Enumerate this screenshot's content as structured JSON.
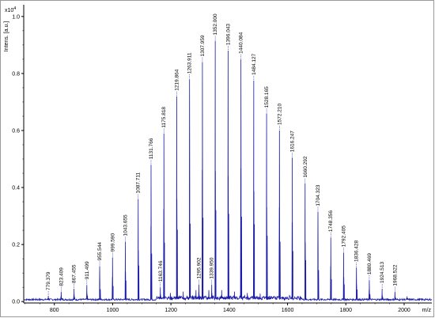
{
  "chart_data": {
    "type": "line",
    "title": "",
    "ylabel": "Intens. [a.u.]",
    "y_multiplier_label": "x10",
    "y_multiplier_exponent": "4",
    "xlabel": "m/z",
    "xlim": [
      695,
      2095
    ],
    "ylim": [
      -0.005,
      1.03
    ],
    "x_ticks": [
      800,
      1000,
      1200,
      1400,
      1600,
      1800,
      2000
    ],
    "y_ticks": [
      0.0,
      0.2,
      0.4,
      0.6,
      0.8,
      1.0
    ],
    "y_tick_labels": [
      "0.0",
      "0.2",
      "0.4",
      "0.6",
      "0.8",
      "1.0"
    ],
    "grid": false,
    "series_color": "#1a1aa8",
    "peaks": [
      {
        "x": 779.379,
        "y": 0.02,
        "label": "779.379"
      },
      {
        "x": 823.409,
        "y": 0.035,
        "label": "823.409"
      },
      {
        "x": 867.455,
        "y": 0.045,
        "label": "867.455"
      },
      {
        "x": 911.499,
        "y": 0.058,
        "label": "911.499"
      },
      {
        "x": 955.544,
        "y": 0.124,
        "label": "955.544"
      },
      {
        "x": 999.59,
        "y": 0.155,
        "label": "999.590"
      },
      {
        "x": 1043.655,
        "y": 0.21,
        "label": "1043.655"
      },
      {
        "x": 1087.711,
        "y": 0.36,
        "label": "1087.711"
      },
      {
        "x": 1131.766,
        "y": 0.48,
        "label": "1131.766"
      },
      {
        "x": 1163.746,
        "y": 0.05,
        "label": "1163.746"
      },
      {
        "x": 1175.818,
        "y": 0.59,
        "label": "1175.818"
      },
      {
        "x": 1219.864,
        "y": 0.72,
        "label": "1219.864"
      },
      {
        "x": 1263.911,
        "y": 0.78,
        "label": "1263.911"
      },
      {
        "x": 1295.902,
        "y": 0.06,
        "label": "1295.902"
      },
      {
        "x": 1307.959,
        "y": 0.84,
        "label": "1307.959"
      },
      {
        "x": 1339.95,
        "y": 0.06,
        "label": "1339.950"
      },
      {
        "x": 1352.0,
        "y": 0.915,
        "label": "1352.000"
      },
      {
        "x": 1396.043,
        "y": 0.88,
        "label": "1396.043"
      },
      {
        "x": 1440.084,
        "y": 0.85,
        "label": "1440.084"
      },
      {
        "x": 1484.127,
        "y": 0.775,
        "label": "1484.127"
      },
      {
        "x": 1528.165,
        "y": 0.66,
        "label": "1528.165"
      },
      {
        "x": 1572.21,
        "y": 0.6,
        "label": "1572.210"
      },
      {
        "x": 1616.247,
        "y": 0.505,
        "label": "1616.247"
      },
      {
        "x": 1660.292,
        "y": 0.415,
        "label": "1660.292"
      },
      {
        "x": 1704.323,
        "y": 0.315,
        "label": "1704.323"
      },
      {
        "x": 1748.356,
        "y": 0.225,
        "label": "1748.356"
      },
      {
        "x": 1792.405,
        "y": 0.172,
        "label": "1792.405"
      },
      {
        "x": 1836.428,
        "y": 0.12,
        "label": "1836.428"
      },
      {
        "x": 1880.469,
        "y": 0.075,
        "label": "1880.469"
      },
      {
        "x": 1924.513,
        "y": 0.045,
        "label": "1924.513"
      },
      {
        "x": 1968.522,
        "y": 0.035,
        "label": "1968.522"
      },
      {
        "x": 2010.0,
        "y": 0.018,
        "label": ""
      },
      {
        "x": 1198.0,
        "y": 0.03,
        "label": ""
      },
      {
        "x": 1242.0,
        "y": 0.035,
        "label": ""
      },
      {
        "x": 1286.0,
        "y": 0.04,
        "label": ""
      },
      {
        "x": 1330.0,
        "y": 0.04,
        "label": ""
      },
      {
        "x": 1374.0,
        "y": 0.04,
        "label": ""
      },
      {
        "x": 1418.0,
        "y": 0.035,
        "label": ""
      },
      {
        "x": 1462.0,
        "y": 0.03,
        "label": ""
      },
      {
        "x": 1506.0,
        "y": 0.028,
        "label": ""
      }
    ]
  }
}
